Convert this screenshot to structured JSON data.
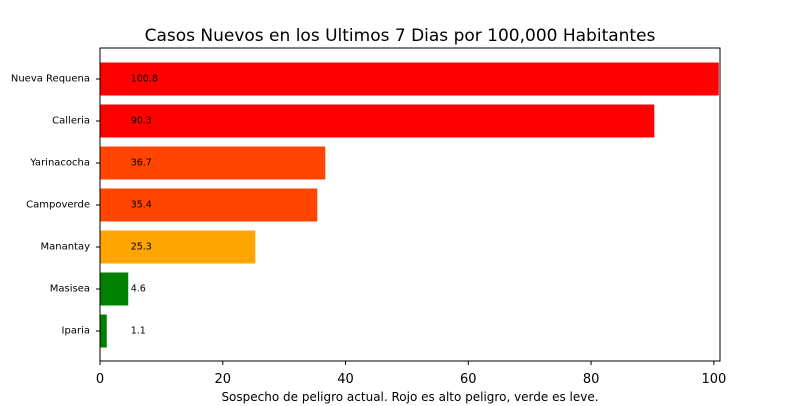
{
  "chart_data": {
    "type": "bar",
    "orientation": "horizontal",
    "title": "Casos Nuevos en los Ultimos 7 Dias por 100,000 Habitantes",
    "xlabel": "Sospecho de peligro actual. Rojo es alto peligro, verde es leve.",
    "ylabel": "",
    "categories": [
      "Nueva Requena",
      "Calleria",
      "Yarinacocha",
      "Campoverde",
      "Manantay",
      "Masisea",
      "Iparia"
    ],
    "values": [
      100.8,
      90.3,
      36.7,
      35.4,
      25.3,
      4.6,
      1.1
    ],
    "value_labels": [
      "100.8",
      "90.3",
      "36.7",
      "35.4",
      "25.3",
      "4.6",
      "1.1"
    ],
    "colors": [
      "#ff0000",
      "#ff0000",
      "#ff4500",
      "#ff4500",
      "#ffa500",
      "#008000",
      "#008000"
    ],
    "xlim": [
      0,
      101
    ],
    "xticks": [
      0,
      20,
      40,
      60,
      80,
      100
    ],
    "grid": false,
    "legend": false
  }
}
